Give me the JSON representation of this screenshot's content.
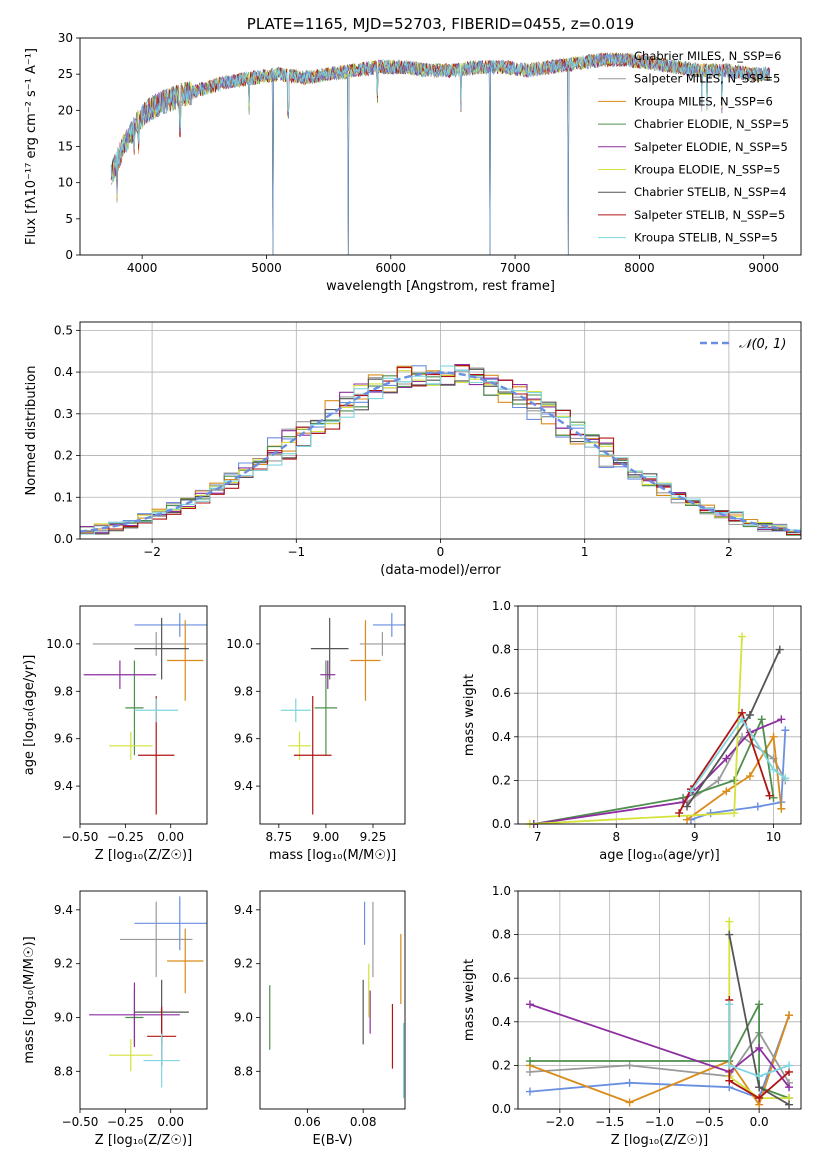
{
  "colors": [
    "#6a8fe0",
    "#9a9a9a",
    "#d98c1a",
    "#4e8f4e",
    "#8e2fa0",
    "#d4e23a",
    "#555555",
    "#b01515",
    "#7fd6e0"
  ],
  "chart_data": [
    {
      "type": "line",
      "title": "PLATE=1165, MJD=52703, FIBERID=0455, z=0.019",
      "xlabel": "wavelength [Angstrom, rest frame]",
      "ylabel": "Flux [fλ10⁻¹⁷ erg cm⁻² s⁻¹ A⁻¹]",
      "xlim": [
        3500,
        9300
      ],
      "ylim": [
        0,
        30
      ],
      "xticks": [
        4000,
        5000,
        6000,
        7000,
        8000,
        9000
      ],
      "yticks": [
        0,
        5,
        10,
        15,
        20,
        25,
        30
      ],
      "grid": false,
      "legend": "top-right",
      "legend_entries": [
        "Chabrier MILES, N_SSP=6",
        "Salpeter MILES, N_SSP=5",
        "Kroupa MILES, N_SSP=6",
        "Chabrier ELODIE, N_SSP=5",
        "Salpeter ELODIE, N_SSP=5",
        "Kroupa ELODIE, N_SSP=5",
        "Chabrier STELIB, N_SSP=4",
        "Salpeter STELIB, N_SSP=5",
        "Kroupa STELIB, N_SSP=5"
      ],
      "continuum": {
        "x": [
          3750,
          3850,
          3950,
          4050,
          4150,
          4300,
          4500,
          4700,
          4900,
          5100,
          5300,
          5500,
          5700,
          5900,
          6100,
          6300,
          6500,
          6700,
          6900,
          7100,
          7300,
          7500,
          7700,
          7900,
          8100,
          8300,
          8500,
          8700,
          8900,
          9050
        ],
        "y": [
          11,
          15,
          18,
          20,
          21,
          22,
          23,
          24,
          24.5,
          25,
          24.5,
          25,
          25.5,
          26,
          26,
          25.5,
          25.5,
          26,
          26,
          25.5,
          26,
          26.5,
          27,
          27,
          26.5,
          26,
          25.5,
          25.5,
          25,
          25
        ]
      },
      "dips": [
        [
          3800,
          4
        ],
        [
          3935,
          6
        ],
        [
          3970,
          5
        ],
        [
          4305,
          4
        ],
        [
          4862,
          4
        ],
        [
          5050,
          0
        ],
        [
          5175,
          3
        ],
        [
          5660,
          0
        ],
        [
          5890,
          4
        ],
        [
          6563,
          3
        ],
        [
          6800,
          0
        ],
        [
          7430,
          0
        ],
        [
          8500,
          3
        ],
        [
          8545,
          3
        ],
        [
          8665,
          3
        ]
      ]
    },
    {
      "type": "step",
      "xlabel": "(data-model)/error",
      "ylabel": "Normed distribution",
      "xlim": [
        -2.5,
        2.5
      ],
      "ylim": [
        0,
        0.52
      ],
      "xticks": [
        -2,
        -1,
        0,
        1,
        2
      ],
      "xtick_labels": [
        "−2",
        "−1",
        "0",
        "1",
        "2"
      ],
      "yticks": [
        0,
        0.1,
        0.2,
        0.3,
        0.4,
        0.5
      ],
      "grid": true,
      "legend": "top-right",
      "legend_entries": [
        "𝒩(0, 1)"
      ],
      "bin_width": 0.1
    },
    {
      "type": "errorbar",
      "xlabel": "Z [log₁₀(Z/Z☉)]",
      "ylabel": "age  [log₁₀(age/yr)]",
      "xlim": [
        -0.5,
        0.2
      ],
      "ylim": [
        9.24,
        10.16
      ],
      "xticks": [
        -0.5,
        -0.25,
        0
      ],
      "xtick_labels": [
        "−0.50",
        "−0.25",
        "0.00"
      ],
      "yticks": [
        9.4,
        9.6,
        9.8,
        10.0
      ],
      "points": [
        {
          "x": 0.05,
          "xerr": 0.25,
          "y": 10.08,
          "yerr": 0.05,
          "c": 0
        },
        {
          "x": -0.08,
          "xerr": 0.35,
          "y": 10.0,
          "yerr": 0.05,
          "c": 1
        },
        {
          "x": 0.08,
          "xerr": 0.1,
          "y": 9.93,
          "yerr": 0.17,
          "c": 2
        },
        {
          "x": -0.2,
          "xerr": 0.05,
          "y": 9.73,
          "yerr": 0.2,
          "c": 3
        },
        {
          "x": -0.28,
          "xerr": 0.2,
          "y": 9.87,
          "yerr": 0.06,
          "c": 4
        },
        {
          "x": -0.22,
          "xerr": 0.12,
          "y": 9.57,
          "yerr": 0.06,
          "c": 5
        },
        {
          "x": -0.05,
          "xerr": 0.15,
          "y": 9.98,
          "yerr": 0.13,
          "c": 6
        },
        {
          "x": -0.08,
          "xerr": 0.1,
          "y": 9.53,
          "yerr": 0.25,
          "c": 7
        },
        {
          "x": -0.08,
          "xerr": 0.12,
          "y": 9.72,
          "yerr": 0.05,
          "c": 8
        }
      ]
    },
    {
      "type": "errorbar",
      "xlabel": "mass [log₁₀(M/M☉)]",
      "ylabel": "",
      "xlim": [
        8.65,
        9.42
      ],
      "ylim": [
        9.24,
        10.16
      ],
      "xticks": [
        8.75,
        9.0,
        9.25
      ],
      "xtick_labels": [
        "8.75",
        "9.00",
        "9.25"
      ],
      "yticks": [
        9.4,
        9.6,
        9.8,
        10.0
      ],
      "points": [
        {
          "x": 9.35,
          "xerr": 0.1,
          "y": 10.08,
          "yerr": 0.05,
          "c": 0
        },
        {
          "x": 9.3,
          "xerr": 0.12,
          "y": 10.0,
          "yerr": 0.05,
          "c": 1
        },
        {
          "x": 9.21,
          "xerr": 0.08,
          "y": 9.93,
          "yerr": 0.17,
          "c": 2
        },
        {
          "x": 9.0,
          "xerr": 0.06,
          "y": 9.73,
          "yerr": 0.2,
          "c": 3
        },
        {
          "x": 9.01,
          "xerr": 0.04,
          "y": 9.87,
          "yerr": 0.06,
          "c": 4
        },
        {
          "x": 8.86,
          "xerr": 0.06,
          "y": 9.57,
          "yerr": 0.06,
          "c": 5
        },
        {
          "x": 9.02,
          "xerr": 0.1,
          "y": 9.98,
          "yerr": 0.13,
          "c": 6
        },
        {
          "x": 8.93,
          "xerr": 0.1,
          "y": 9.53,
          "yerr": 0.25,
          "c": 7
        },
        {
          "x": 8.84,
          "xerr": 0.08,
          "y": 9.72,
          "yerr": 0.05,
          "c": 8
        }
      ]
    },
    {
      "type": "line",
      "xlabel": "age  [log₁₀(age/yr)]",
      "ylabel": "mass weight",
      "xlim": [
        6.75,
        10.35
      ],
      "ylim": [
        0,
        1
      ],
      "xticks": [
        7,
        8,
        9,
        10
      ],
      "xtick_labels": [
        "7",
        "8",
        "9",
        "10"
      ],
      "yticks": [
        0,
        0.2,
        0.4,
        0.6,
        0.8,
        1.0
      ],
      "yticks_labels": [
        "0.0",
        "0.2",
        "0.4",
        "0.6",
        "0.8",
        "1.0"
      ],
      "grid": true,
      "series": [
        {
          "c": 0,
          "points": [
            [
              8.95,
              0.02
            ],
            [
              9.2,
              0.05
            ],
            [
              9.8,
              0.08
            ],
            [
              10.1,
              0.1
            ],
            [
              10.15,
              0.43
            ]
          ]
        },
        {
          "c": 1,
          "points": [
            [
              8.9,
              0.1
            ],
            [
              9.3,
              0.2
            ],
            [
              9.6,
              0.4
            ],
            [
              10.0,
              0.3
            ],
            [
              10.15,
              0.2
            ]
          ]
        },
        {
          "c": 2,
          "points": [
            [
              8.9,
              0.02
            ],
            [
              9.4,
              0.15
            ],
            [
              9.7,
              0.22
            ],
            [
              10.0,
              0.4
            ],
            [
              10.1,
              0.07
            ]
          ]
        },
        {
          "c": 3,
          "points": [
            [
              6.95,
              0.0
            ],
            [
              8.85,
              0.12
            ],
            [
              9.5,
              0.2
            ],
            [
              9.85,
              0.48
            ],
            [
              10.0,
              0.12
            ]
          ]
        },
        {
          "c": 4,
          "points": [
            [
              6.95,
              0.0
            ],
            [
              8.85,
              0.1
            ],
            [
              9.4,
              0.3
            ],
            [
              9.7,
              0.42
            ],
            [
              10.1,
              0.48
            ]
          ]
        },
        {
          "c": 5,
          "points": [
            [
              6.9,
              0.0
            ],
            [
              9.5,
              0.05
            ],
            [
              9.6,
              0.86
            ]
          ]
        },
        {
          "c": 6,
          "points": [
            [
              8.9,
              0.08
            ],
            [
              9.7,
              0.5
            ],
            [
              10.08,
              0.8
            ]
          ]
        },
        {
          "c": 7,
          "points": [
            [
              8.8,
              0.05
            ],
            [
              8.95,
              0.16
            ],
            [
              9.6,
              0.51
            ],
            [
              9.95,
              0.13
            ]
          ]
        },
        {
          "c": 8,
          "points": [
            [
              8.95,
              0.15
            ],
            [
              9.6,
              0.48
            ],
            [
              10.0,
              0.25
            ],
            [
              10.15,
              0.21
            ]
          ]
        }
      ]
    },
    {
      "type": "errorbar",
      "xlabel": "Z [log₁₀(Z/Z☉)]",
      "ylabel": "mass [log₁₀(M/M☉)]",
      "xlim": [
        -0.5,
        0.2
      ],
      "ylim": [
        8.66,
        9.47
      ],
      "xticks": [
        -0.5,
        -0.25,
        0
      ],
      "xtick_labels": [
        "−0.50",
        "−0.25",
        "0.00"
      ],
      "yticks": [
        8.8,
        9.0,
        9.2,
        9.4
      ],
      "points": [
        {
          "x": 0.05,
          "xerr": 0.25,
          "y": 9.35,
          "yerr": 0.1,
          "c": 0
        },
        {
          "x": -0.08,
          "xerr": 0.2,
          "y": 9.29,
          "yerr": 0.14,
          "c": 1
        },
        {
          "x": 0.08,
          "xerr": 0.1,
          "y": 9.21,
          "yerr": 0.12,
          "c": 2
        },
        {
          "x": -0.2,
          "xerr": 0.05,
          "y": 9.0,
          "yerr": 0.1,
          "c": 3
        },
        {
          "x": -0.2,
          "xerr": 0.25,
          "y": 9.01,
          "yerr": 0.12,
          "c": 4
        },
        {
          "x": -0.22,
          "xerr": 0.12,
          "y": 8.86,
          "yerr": 0.06,
          "c": 5
        },
        {
          "x": -0.05,
          "xerr": 0.15,
          "y": 9.02,
          "yerr": 0.12,
          "c": 6
        },
        {
          "x": -0.05,
          "xerr": 0.08,
          "y": 8.93,
          "yerr": 0.11,
          "c": 7
        },
        {
          "x": -0.05,
          "xerr": 0.1,
          "y": 8.84,
          "yerr": 0.1,
          "c": 8
        }
      ]
    },
    {
      "type": "errorbar",
      "xlabel": "E(B-V)",
      "ylabel": "",
      "xlim": [
        0.043,
        0.095
      ],
      "ylim": [
        8.66,
        9.47
      ],
      "xticks": [
        0.06,
        0.08
      ],
      "xtick_labels": [
        "0.06",
        "0.08"
      ],
      "yticks": [
        8.8,
        9.0,
        9.2,
        9.4
      ],
      "points": [
        {
          "x": 0.0805,
          "xerr": 0,
          "y": 9.35,
          "yerr": 0.08,
          "c": 0
        },
        {
          "x": 0.0835,
          "xerr": 0,
          "y": 9.29,
          "yerr": 0.14,
          "c": 1
        },
        {
          "x": 0.0935,
          "xerr": 0,
          "y": 9.18,
          "yerr": 0.13,
          "c": 2
        },
        {
          "x": 0.0465,
          "xerr": 0,
          "y": 9.0,
          "yerr": 0.12,
          "c": 3
        },
        {
          "x": 0.0825,
          "xerr": 0,
          "y": 9.02,
          "yerr": 0.08,
          "c": 4
        },
        {
          "x": 0.082,
          "xerr": 0,
          "y": 9.1,
          "yerr": 0.1,
          "c": 5
        },
        {
          "x": 0.08,
          "xerr": 0,
          "y": 9.02,
          "yerr": 0.12,
          "c": 6
        },
        {
          "x": 0.0905,
          "xerr": 0,
          "y": 8.93,
          "yerr": 0.12,
          "c": 7
        },
        {
          "x": 0.0945,
          "xerr": 0,
          "y": 8.84,
          "yerr": 0.14,
          "c": 8
        }
      ]
    },
    {
      "type": "line",
      "xlabel": "Z [log₁₀(Z/Z☉)]",
      "ylabel": "mass weight",
      "xlim": [
        -2.42,
        0.42
      ],
      "ylim": [
        0,
        1
      ],
      "xticks": [
        -2,
        -1.5,
        -1,
        -0.5,
        0
      ],
      "xtick_labels": [
        "−2.0",
        "−1.5",
        "−1.0",
        "−0.5",
        "0.0"
      ],
      "yticks": [
        0,
        0.2,
        0.4,
        0.6,
        0.8,
        1.0
      ],
      "yticks_labels": [
        "0.0",
        "0.2",
        "0.4",
        "0.6",
        "0.8",
        "1.0"
      ],
      "grid": true,
      "series": [
        {
          "c": 0,
          "points": [
            [
              -2.3,
              0.08
            ],
            [
              -1.3,
              0.12
            ],
            [
              -0.3,
              0.1
            ],
            [
              0,
              0.05
            ],
            [
              0.3,
              0.43
            ]
          ]
        },
        {
          "c": 1,
          "points": [
            [
              -2.3,
              0.17
            ],
            [
              -1.3,
              0.2
            ],
            [
              -0.3,
              0.15
            ],
            [
              0,
              0.35
            ],
            [
              0.3,
              0.12
            ]
          ]
        },
        {
          "c": 2,
          "points": [
            [
              -2.3,
              0.2
            ],
            [
              -1.3,
              0.03
            ],
            [
              -0.3,
              0.22
            ],
            [
              0,
              0.02
            ],
            [
              0.3,
              0.43
            ]
          ]
        },
        {
          "c": 3,
          "points": [
            [
              -2.3,
              0.22
            ],
            [
              -0.3,
              0.22
            ],
            [
              0,
              0.48
            ],
            [
              0,
              0.1
            ],
            [
              0.3,
              0.05
            ]
          ]
        },
        {
          "c": 4,
          "points": [
            [
              -2.3,
              0.48
            ],
            [
              -0.3,
              0.17
            ],
            [
              0,
              0.28
            ],
            [
              0.3,
              0.1
            ]
          ]
        },
        {
          "c": 5,
          "points": [
            [
              -0.3,
              0.86
            ],
            [
              -0.3,
              0.15
            ],
            [
              0,
              0.05
            ],
            [
              0.3,
              0.05
            ]
          ]
        },
        {
          "c": 6,
          "points": [
            [
              -0.3,
              0.8
            ],
            [
              0,
              0.1
            ],
            [
              0.3,
              0.02
            ]
          ]
        },
        {
          "c": 7,
          "points": [
            [
              -0.3,
              0.5
            ],
            [
              -0.3,
              0.13
            ],
            [
              0,
              0.05
            ],
            [
              0.3,
              0.17
            ]
          ]
        },
        {
          "c": 8,
          "points": [
            [
              -0.3,
              0.48
            ],
            [
              -0.3,
              0.2
            ],
            [
              0,
              0.15
            ],
            [
              0.3,
              0.2
            ]
          ]
        }
      ]
    }
  ]
}
